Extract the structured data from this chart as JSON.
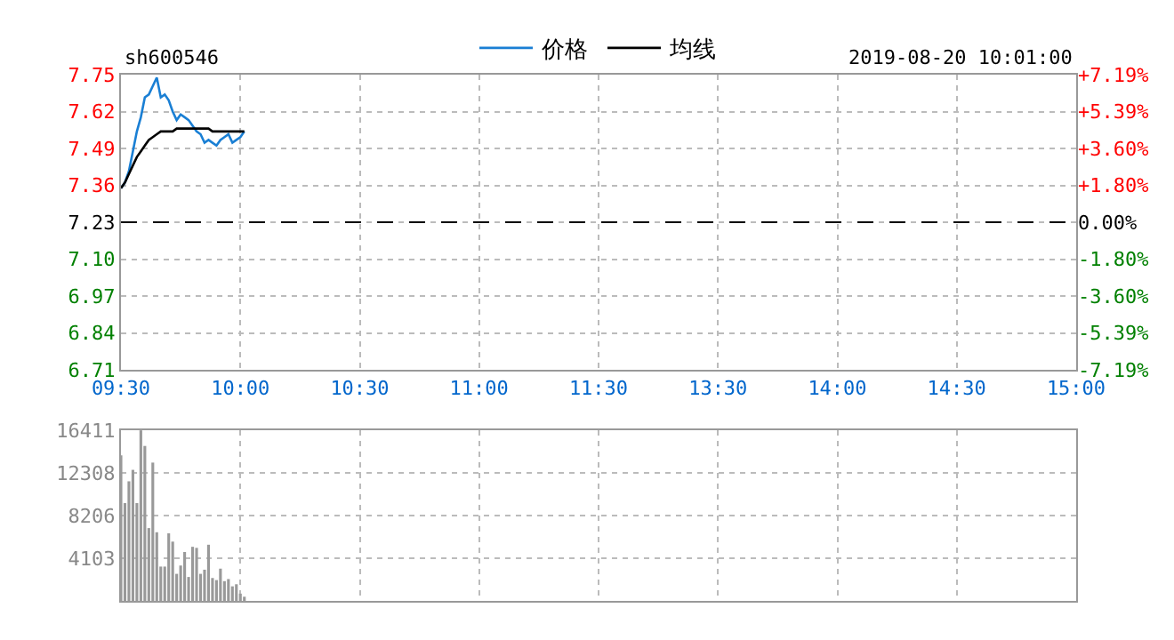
{
  "chart_data": [
    {
      "type": "line",
      "title": "sh600546",
      "annotations": [
        "2019-08-20 10:01:00"
      ],
      "legend": "top",
      "grid": true,
      "marker": "none",
      "line_style": "solid",
      "categories": [
        "09:30",
        null,
        null,
        null,
        null,
        null,
        null,
        null,
        null,
        null,
        null,
        null,
        null,
        null,
        null,
        null,
        null,
        null,
        null,
        null,
        null,
        null,
        null,
        null,
        null,
        null,
        null,
        null,
        null,
        null,
        "10:00",
        null,
        null,
        null,
        null,
        null,
        null,
        null,
        null,
        null,
        null,
        null,
        null,
        null,
        null,
        null,
        null,
        null,
        null,
        null,
        null,
        null,
        null,
        null,
        null,
        null,
        null,
        null,
        null,
        null,
        "10:30",
        null,
        null,
        null,
        null,
        null,
        null,
        null,
        null,
        null,
        null,
        null,
        null,
        null,
        null,
        null,
        null,
        null,
        null,
        null,
        null,
        null,
        null,
        null,
        null,
        null,
        null,
        null,
        null,
        null,
        "11:00",
        null,
        null,
        null,
        null,
        null,
        null,
        null,
        null,
        null,
        null,
        null,
        null,
        null,
        null,
        null,
        null,
        null,
        null,
        null,
        null,
        null,
        null,
        null,
        null,
        null,
        null,
        null,
        null,
        null,
        "11:30",
        null,
        null,
        null,
        null,
        null,
        null,
        null,
        null,
        null,
        null,
        null,
        null,
        null,
        null,
        null,
        null,
        null,
        null,
        null,
        null,
        null,
        null,
        null,
        null,
        null,
        null,
        null,
        null,
        null,
        "13:30",
        null,
        null,
        null,
        null,
        null,
        null,
        null,
        null,
        null,
        null,
        null,
        null,
        null,
        null,
        null,
        null,
        null,
        null,
        null,
        null,
        null,
        null,
        null,
        null,
        null,
        null,
        null,
        null,
        null,
        "14:00",
        null,
        null,
        null,
        null,
        null,
        null,
        null,
        null,
        null,
        null,
        null,
        null,
        null,
        null,
        null,
        null,
        null,
        null,
        null,
        null,
        null,
        null,
        null,
        null,
        null,
        null,
        null,
        null,
        null,
        "14:30",
        null,
        null,
        null,
        null,
        null,
        null,
        null,
        null,
        null,
        null,
        null,
        null,
        null,
        null,
        null,
        null,
        null,
        null,
        null,
        null,
        null,
        null,
        null,
        null,
        null,
        null,
        null,
        null,
        null,
        "15:00"
      ],
      "ylim": [
        6.71,
        7.75
      ],
      "yticks": [
        6.71,
        6.84,
        6.97,
        {
          "value": 7.1,
          "label": "7.10"
        },
        7.23,
        7.36,
        7.49,
        7.62,
        7.75
      ],
      "y2lim": [
        -7.19,
        7.19
      ],
      "y2ticks": [
        {
          "value": -7.19,
          "label": "-7.19%"
        },
        {
          "value": -5.39,
          "label": "-5.39%"
        },
        {
          "value": -3.6,
          "label": "-3.60%"
        },
        {
          "value": -1.8,
          "label": "-1.80%"
        },
        {
          "value": 0,
          "label": "0.00%"
        },
        {
          "value": 1.8,
          "label": "+1.80%"
        },
        {
          "value": 3.6,
          "label": "+3.60%"
        },
        {
          "value": 5.39,
          "label": "+5.39%"
        },
        {
          "value": 7.19,
          "label": "+7.19%"
        }
      ],
      "ref_lines": [
        {
          "axis": "y",
          "value": 7.23,
          "label": null,
          "color": "#000000",
          "line_style": "dashed"
        }
      ],
      "series": [
        {
          "name": "价格",
          "color": "#1a7fd4",
          "values": [
            7.35,
            7.37,
            7.41,
            7.48,
            7.55,
            7.6,
            7.67,
            7.68,
            7.71,
            7.74,
            7.67,
            7.68,
            7.66,
            7.62,
            7.59,
            7.61,
            7.6,
            7.59,
            7.57,
            7.55,
            7.54,
            7.51,
            7.52,
            7.51,
            7.5,
            7.52,
            7.53,
            7.54,
            7.51,
            7.52,
            7.53,
            7.55,
            null,
            null,
            null,
            null,
            null,
            null,
            null,
            null,
            null,
            null,
            null,
            null,
            null,
            null,
            null,
            null,
            null,
            null,
            null,
            null,
            null,
            null,
            null,
            null,
            null,
            null,
            null,
            null,
            null,
            null,
            null,
            null,
            null,
            null,
            null,
            null,
            null,
            null,
            null,
            null,
            null,
            null,
            null,
            null,
            null,
            null,
            null,
            null,
            null,
            null,
            null,
            null,
            null,
            null,
            null,
            null,
            null,
            null,
            null,
            null,
            null,
            null,
            null,
            null,
            null,
            null,
            null,
            null,
            null,
            null,
            null,
            null,
            null,
            null,
            null,
            null,
            null,
            null,
            null,
            null,
            null,
            null,
            null,
            null,
            null,
            null,
            null,
            null,
            null,
            null,
            null,
            null,
            null,
            null,
            null,
            null,
            null,
            null,
            null,
            null,
            null,
            null,
            null,
            null,
            null,
            null,
            null,
            null,
            null,
            null,
            null,
            null,
            null,
            null,
            null,
            null,
            null,
            null,
            null,
            null,
            null,
            null,
            null,
            null,
            null,
            null,
            null,
            null,
            null,
            null,
            null,
            null,
            null,
            null,
            null,
            null,
            null,
            null,
            null,
            null,
            null,
            null,
            null,
            null,
            null,
            null,
            null,
            null,
            null,
            null,
            null,
            null,
            null,
            null,
            null,
            null,
            null,
            null,
            null,
            null,
            null,
            null,
            null,
            null,
            null,
            null,
            null,
            null,
            null,
            null,
            null,
            null,
            null,
            null,
            null,
            null,
            null,
            null,
            null,
            null,
            null,
            null,
            null,
            null,
            null,
            null,
            null,
            null,
            null,
            null,
            null,
            null,
            null,
            null,
            null,
            null,
            null,
            null,
            null,
            null,
            null,
            null,
            null,
            null,
            null,
            null,
            null,
            null,
            null
          ]
        },
        {
          "name": "均线",
          "color": "#000000",
          "values": [
            7.35,
            7.37,
            7.4,
            7.43,
            7.46,
            7.48,
            7.5,
            7.52,
            7.53,
            7.54,
            7.55,
            7.55,
            7.55,
            7.55,
            7.56,
            7.56,
            7.56,
            7.56,
            7.56,
            7.56,
            7.56,
            7.56,
            7.56,
            7.55,
            7.55,
            7.55,
            7.55,
            7.55,
            7.55,
            7.55,
            7.55,
            7.55,
            null,
            null,
            null,
            null,
            null,
            null,
            null,
            null,
            null,
            null,
            null,
            null,
            null,
            null,
            null,
            null,
            null,
            null,
            null,
            null,
            null,
            null,
            null,
            null,
            null,
            null,
            null,
            null,
            null,
            null,
            null,
            null,
            null,
            null,
            null,
            null,
            null,
            null,
            null,
            null,
            null,
            null,
            null,
            null,
            null,
            null,
            null,
            null,
            null,
            null,
            null,
            null,
            null,
            null,
            null,
            null,
            null,
            null,
            null,
            null,
            null,
            null,
            null,
            null,
            null,
            null,
            null,
            null,
            null,
            null,
            null,
            null,
            null,
            null,
            null,
            null,
            null,
            null,
            null,
            null,
            null,
            null,
            null,
            null,
            null,
            null,
            null,
            null,
            null,
            null,
            null,
            null,
            null,
            null,
            null,
            null,
            null,
            null,
            null,
            null,
            null,
            null,
            null,
            null,
            null,
            null,
            null,
            null,
            null,
            null,
            null,
            null,
            null,
            null,
            null,
            null,
            null,
            null,
            null,
            null,
            null,
            null,
            null,
            null,
            null,
            null,
            null,
            null,
            null,
            null,
            null,
            null,
            null,
            null,
            null,
            null,
            null,
            null,
            null,
            null,
            null,
            null,
            null,
            null,
            null,
            null,
            null,
            null,
            null,
            null,
            null,
            null,
            null,
            null,
            null,
            null,
            null,
            null,
            null,
            null,
            null,
            null,
            null,
            null,
            null,
            null,
            null,
            null,
            null,
            null,
            null,
            null,
            null,
            null,
            null,
            null,
            null,
            null,
            null,
            null,
            null,
            null,
            null,
            null,
            null,
            null,
            null,
            null,
            null,
            null,
            null,
            null,
            null,
            null,
            null,
            null,
            null,
            null,
            null,
            null,
            null,
            null,
            null,
            null,
            null,
            null,
            null,
            null,
            null
          ]
        }
      ]
    },
    {
      "type": "bar",
      "grid": true,
      "tick_labels": "y",
      "color": "#999999",
      "categories": [
        null,
        null,
        null,
        null,
        null,
        null,
        null,
        null,
        null,
        null,
        null,
        null,
        null,
        null,
        null,
        null,
        null,
        null,
        null,
        null,
        null,
        null,
        null,
        null,
        null,
        null,
        null,
        null,
        null,
        null,
        null,
        null,
        null,
        null,
        null,
        null,
        null,
        null,
        null,
        null,
        null,
        null,
        null,
        null,
        null,
        null,
        null,
        null,
        null,
        null,
        null,
        null,
        null,
        null,
        null,
        null,
        null,
        null,
        null,
        null,
        null,
        null,
        null,
        null,
        null,
        null,
        null,
        null,
        null,
        null,
        null,
        null,
        null,
        null,
        null,
        null,
        null,
        null,
        null,
        null,
        null,
        null,
        null,
        null,
        null,
        null,
        null,
        null,
        null,
        null,
        null,
        null,
        null,
        null,
        null,
        null,
        null,
        null,
        null,
        null,
        null,
        null,
        null,
        null,
        null,
        null,
        null,
        null,
        null,
        null,
        null,
        null,
        null,
        null,
        null,
        null,
        null,
        null,
        null,
        null,
        null,
        null,
        null,
        null,
        null,
        null,
        null,
        null,
        null,
        null,
        null,
        null,
        null,
        null,
        null,
        null,
        null,
        null,
        null,
        null,
        null,
        null,
        null,
        null,
        null,
        null,
        null,
        null,
        null,
        null,
        null,
        null,
        null,
        null,
        null,
        null,
        null,
        null,
        null,
        null,
        null,
        null,
        null,
        null,
        null,
        null,
        null,
        null,
        null,
        null,
        null,
        null,
        null,
        null,
        null,
        null,
        null,
        null,
        null,
        null,
        null,
        null,
        null,
        null,
        null,
        null,
        null,
        null,
        null,
        null,
        null,
        null,
        null,
        null,
        null,
        null,
        null,
        null,
        null,
        null,
        null,
        null,
        null,
        null,
        null,
        null,
        null,
        null,
        null,
        null,
        null,
        null,
        null,
        null,
        null,
        null,
        null,
        null,
        null,
        null,
        null,
        null,
        null,
        null,
        null,
        null,
        null,
        null,
        null,
        null,
        null,
        null,
        null,
        null,
        null,
        null,
        null,
        null,
        null,
        null,
        null
      ],
      "values": [
        14000,
        9400,
        11500,
        12600,
        9400,
        16400,
        14900,
        7000,
        13300,
        6600,
        3300,
        3300,
        6500,
        5700,
        2600,
        3400,
        4700,
        2300,
        5200,
        5100,
        2600,
        3000,
        5400,
        2200,
        2000,
        3100,
        1900,
        2100,
        1400,
        1600,
        700,
        400,
        null,
        null,
        null,
        null,
        null,
        null,
        null,
        null,
        null,
        null,
        null,
        null,
        null,
        null,
        null,
        null,
        null,
        null,
        null,
        null,
        null,
        null,
        null,
        null,
        null,
        null,
        null,
        null,
        null,
        null,
        null,
        null,
        null,
        null,
        null,
        null,
        null,
        null,
        null,
        null,
        null,
        null,
        null,
        null,
        null,
        null,
        null,
        null,
        null,
        null,
        null,
        null,
        null,
        null,
        null,
        null,
        null,
        null,
        null,
        null,
        null,
        null,
        null,
        null,
        null,
        null,
        null,
        null,
        null,
        null,
        null,
        null,
        null,
        null,
        null,
        null,
        null,
        null,
        null,
        null,
        null,
        null,
        null,
        null,
        null,
        null,
        null,
        null,
        null,
        null,
        null,
        null,
        null,
        null,
        null,
        null,
        null,
        null,
        null,
        null,
        null,
        null,
        null,
        null,
        null,
        null,
        null,
        null,
        null,
        null,
        null,
        null,
        null,
        null,
        null,
        null,
        null,
        null,
        null,
        null,
        null,
        null,
        null,
        null,
        null,
        null,
        null,
        null,
        null,
        null,
        null,
        null,
        null,
        null,
        null,
        null,
        null,
        null,
        null,
        null,
        null,
        null,
        null,
        null,
        null,
        null,
        null,
        null,
        null,
        null,
        null,
        null,
        null,
        null,
        null,
        null,
        null,
        null,
        null,
        null,
        null,
        null,
        null,
        null,
        null,
        null,
        null,
        null,
        null,
        null,
        null,
        null,
        null,
        null,
        null,
        null,
        null,
        null,
        null,
        null,
        null,
        null,
        null,
        null,
        null,
        null,
        null,
        null,
        null,
        null,
        null,
        null,
        null,
        null,
        null,
        null,
        null,
        null,
        null,
        null,
        null,
        null,
        null,
        null,
        null,
        null,
        null,
        null,
        null
      ],
      "ylim": [
        0,
        16411
      ],
      "yticks": [
        4103,
        8206,
        12308,
        16411
      ]
    }
  ]
}
